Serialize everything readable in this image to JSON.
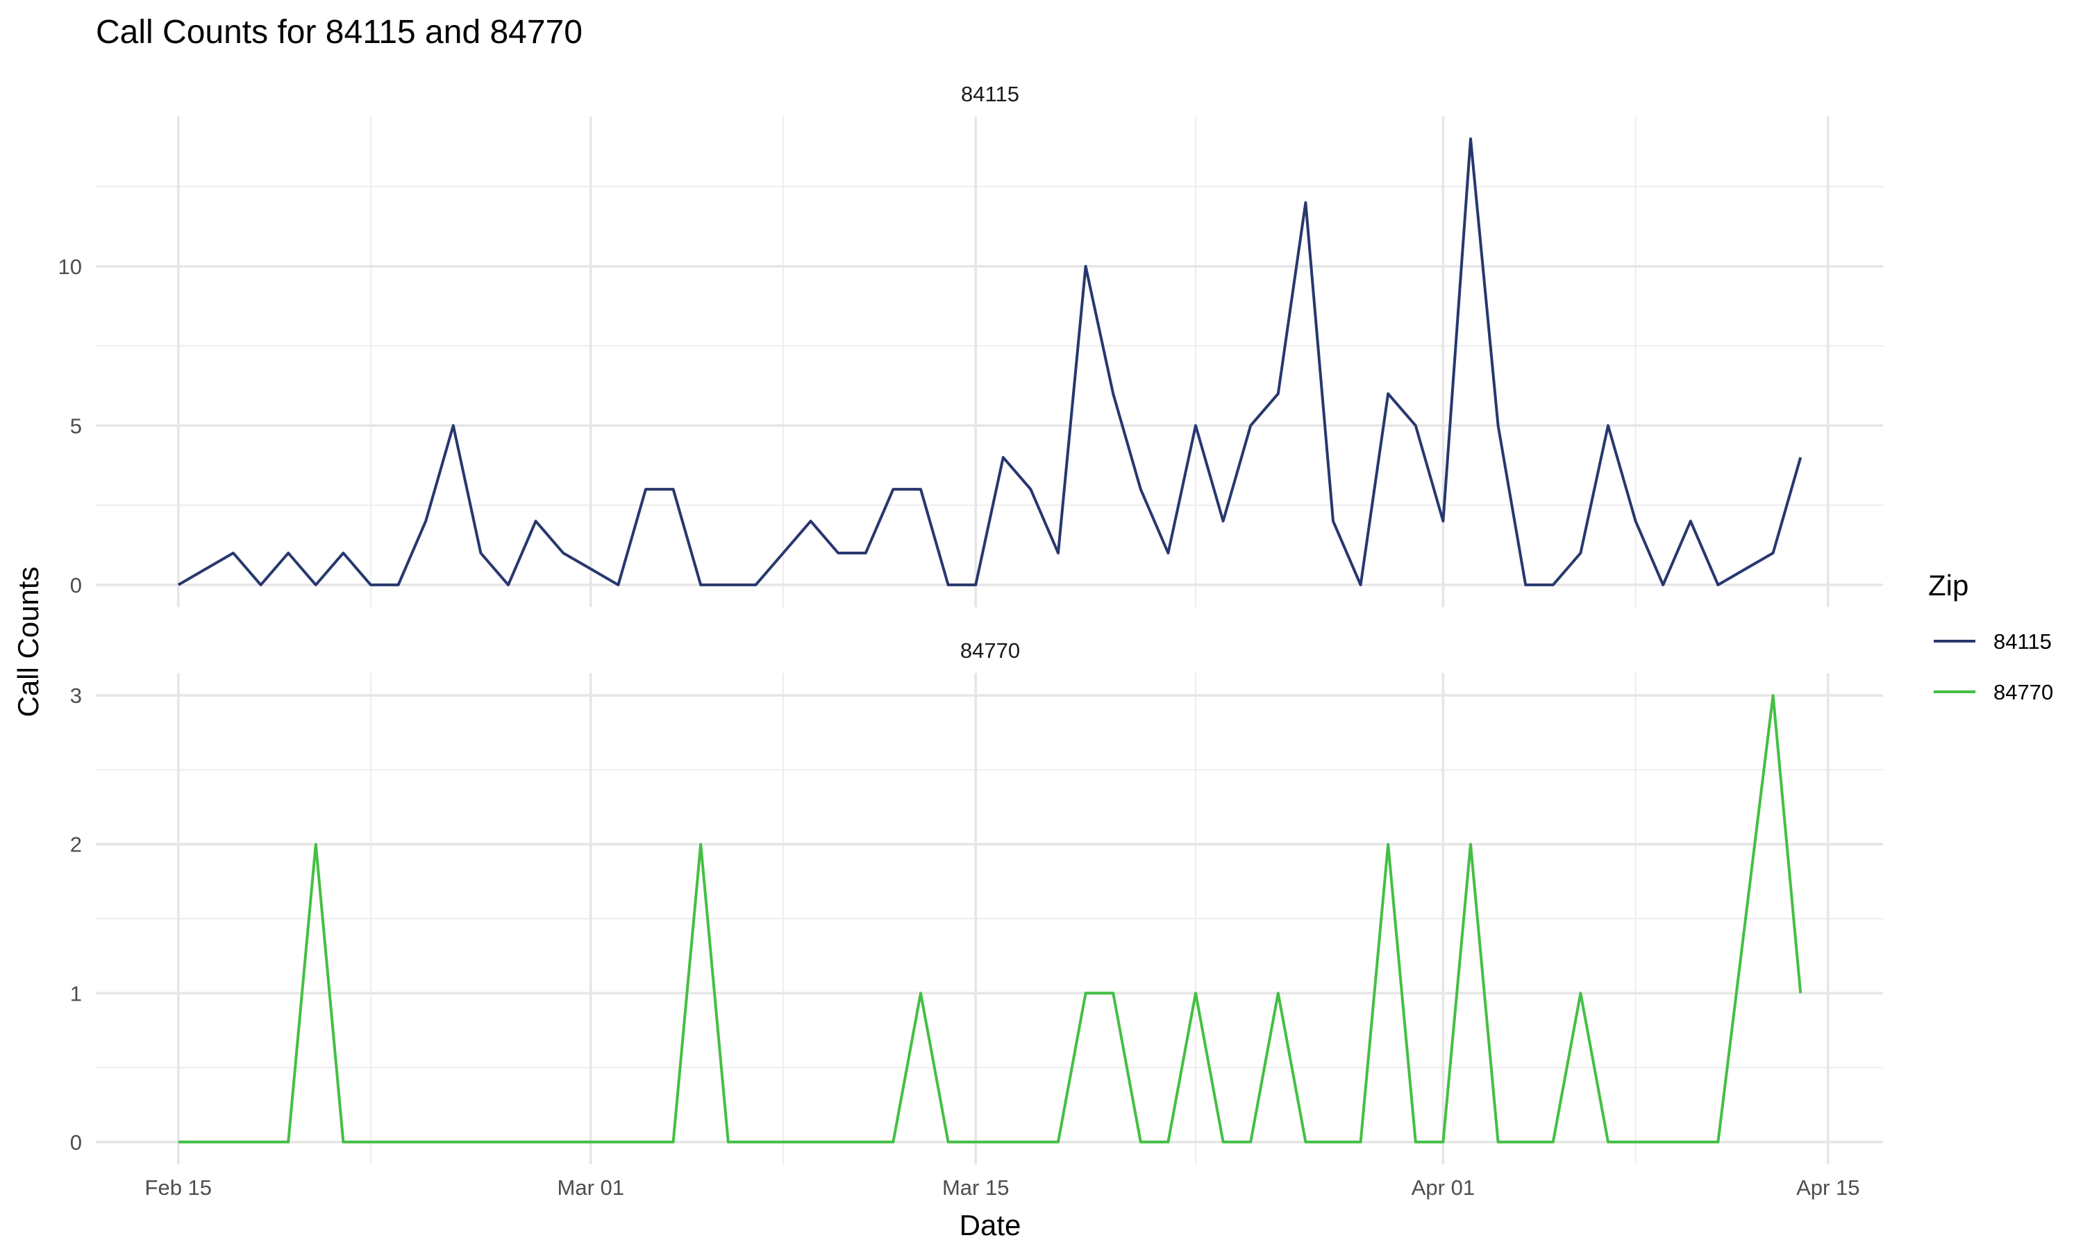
{
  "chart_data": {
    "type": "line",
    "title": "Call Counts for 84115 and 84770",
    "xlabel": "Date",
    "ylabel": "Call Counts",
    "x_ticks": [
      "Feb 15",
      "Mar 01",
      "Mar 15",
      "Apr 01",
      "Apr 15"
    ],
    "x_tick_dates": [
      "2020-02-15",
      "2020-03-01",
      "2020-03-15",
      "2020-04-01",
      "2020-04-15"
    ],
    "xlim": [
      "2020-02-12",
      "2020-04-17"
    ],
    "grid": true,
    "legend": {
      "title": "Zip",
      "position": "right"
    },
    "x": [
      "2020-02-15",
      "2020-02-16",
      "2020-02-17",
      "2020-02-18",
      "2020-02-19",
      "2020-02-20",
      "2020-02-21",
      "2020-02-22",
      "2020-02-23",
      "2020-02-24",
      "2020-02-25",
      "2020-02-26",
      "2020-02-27",
      "2020-02-28",
      "2020-02-29",
      "2020-03-01",
      "2020-03-02",
      "2020-03-03",
      "2020-03-04",
      "2020-03-05",
      "2020-03-06",
      "2020-03-07",
      "2020-03-08",
      "2020-03-09",
      "2020-03-10",
      "2020-03-11",
      "2020-03-12",
      "2020-03-13",
      "2020-03-14",
      "2020-03-15",
      "2020-03-16",
      "2020-03-17",
      "2020-03-18",
      "2020-03-19",
      "2020-03-20",
      "2020-03-21",
      "2020-03-22",
      "2020-03-23",
      "2020-03-24",
      "2020-03-25",
      "2020-03-26",
      "2020-03-27",
      "2020-03-28",
      "2020-03-29",
      "2020-03-30",
      "2020-03-31",
      "2020-04-01",
      "2020-04-02",
      "2020-04-03",
      "2020-04-04",
      "2020-04-05",
      "2020-04-06",
      "2020-04-07",
      "2020-04-08",
      "2020-04-09",
      "2020-04-10",
      "2020-04-11",
      "2020-04-12",
      "2020-04-13",
      "2020-04-14"
    ],
    "panels": [
      {
        "strip_label": "84115",
        "series_name": "84115",
        "color": "#27386e",
        "ylim": [
          -0.7,
          14.7
        ],
        "y_ticks": [
          0,
          5,
          10
        ],
        "y_tick_labels": [
          "0",
          "5",
          "10"
        ],
        "y_minor": [
          2.5,
          7.5,
          12.5
        ],
        "values": [
          0,
          0.5,
          1,
          0,
          1,
          0,
          1,
          0,
          0,
          2,
          5,
          1,
          0,
          2,
          1,
          0.5,
          0,
          3,
          3,
          0,
          0,
          0,
          1,
          2,
          1,
          1,
          3,
          3,
          0,
          0,
          4,
          3,
          1,
          10,
          6,
          3,
          1,
          5,
          2,
          5,
          6,
          12,
          2,
          0,
          6,
          5,
          2,
          14,
          5,
          0,
          0,
          1,
          5,
          2,
          0,
          2,
          0,
          0.5,
          1,
          4
        ]
      },
      {
        "strip_label": "84770",
        "series_name": "84770",
        "color": "#44bf44",
        "ylim": [
          -0.15,
          3.15
        ],
        "y_ticks": [
          0,
          1,
          2,
          3
        ],
        "y_tick_labels": [
          "0",
          "1",
          "2",
          "3"
        ],
        "y_minor": [
          0.5,
          1.5,
          2.5
        ],
        "values": [
          0,
          0,
          0,
          0,
          0,
          2,
          0,
          0,
          0,
          0,
          0,
          0,
          0,
          0,
          0,
          0,
          0,
          0,
          0,
          2,
          0,
          0,
          0,
          0,
          0,
          0,
          0,
          1,
          0,
          0,
          0,
          0,
          0,
          1,
          1,
          0,
          0,
          1,
          0,
          0,
          1,
          0,
          0,
          0,
          2,
          0,
          0,
          2,
          0,
          0,
          0,
          1,
          0,
          0,
          0,
          0,
          0,
          1.5,
          3,
          1
        ]
      }
    ]
  }
}
